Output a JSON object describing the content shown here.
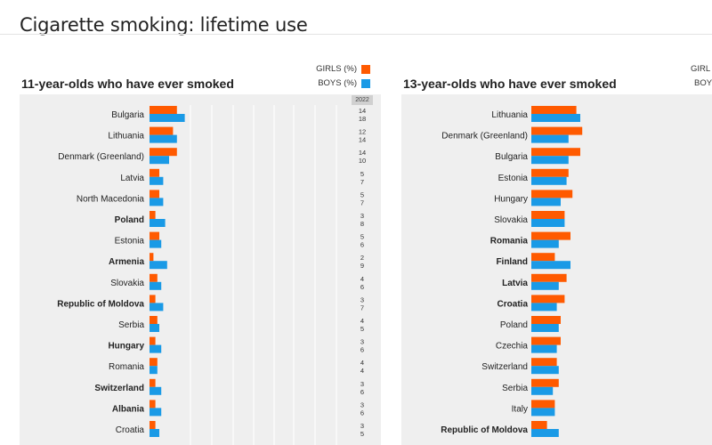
{
  "page": {
    "title": "Cigarette smoking: lifetime use",
    "year_label": "2022",
    "legend_girls": "GIRLS (%)",
    "legend_boys": "BOYS (%)",
    "legend_girls_cut": "GIRL",
    "legend_boys_cut": "BOY"
  },
  "colors": {
    "girls": "#ff5a00",
    "boys": "#1a9ae6",
    "panel": "#efefef"
  },
  "chart_data": [
    {
      "type": "bar",
      "title": "11-year-olds who have ever smoked",
      "categories": [
        "Bulgaria",
        "Lithuania",
        "Denmark (Greenland)",
        "Latvia",
        "North Macedonia",
        "Poland",
        "Estonia",
        "Armenia",
        "Slovakia",
        "Republic of Moldova",
        "Serbia",
        "Hungary",
        "Romania",
        "Switzerland",
        "Albania",
        "Croatia"
      ],
      "bold": [
        false,
        false,
        false,
        false,
        false,
        true,
        false,
        true,
        false,
        true,
        false,
        true,
        false,
        true,
        true,
        false
      ],
      "series": [
        {
          "name": "GIRLS (%)",
          "values": [
            14,
            12,
            14,
            5,
            5,
            3,
            5,
            2,
            4,
            3,
            4,
            3,
            4,
            3,
            3,
            3
          ]
        },
        {
          "name": "BOYS (%)",
          "values": [
            18,
            14,
            10,
            7,
            7,
            8,
            6,
            9,
            6,
            7,
            5,
            6,
            4,
            6,
            6,
            5
          ]
        }
      ],
      "xlim": [
        0,
        100
      ]
    },
    {
      "type": "bar",
      "title": "13-year-olds who have ever smoked",
      "categories": [
        "Lithuania",
        "Denmark (Greenland)",
        "Bulgaria",
        "Estonia",
        "Hungary",
        "Slovakia",
        "Romania",
        "Finland",
        "Latvia",
        "Croatia",
        "Poland",
        "Czechia",
        "Switzerland",
        "Serbia",
        "Italy",
        "Republic of Moldova"
      ],
      "bold": [
        false,
        false,
        false,
        false,
        false,
        false,
        true,
        true,
        true,
        true,
        false,
        false,
        false,
        false,
        false,
        true
      ],
      "series": [
        {
          "name": "GIRLS (%)",
          "values": [
            23,
            26,
            25,
            19,
            21,
            17,
            20,
            12,
            18,
            17,
            15,
            15,
            13,
            14,
            12,
            8
          ]
        },
        {
          "name": "BOYS (%)",
          "values": [
            25,
            19,
            19,
            18,
            15,
            17,
            14,
            20,
            14,
            13,
            14,
            13,
            14,
            11,
            12,
            14
          ]
        }
      ],
      "xlim": [
        0,
        100
      ]
    }
  ]
}
